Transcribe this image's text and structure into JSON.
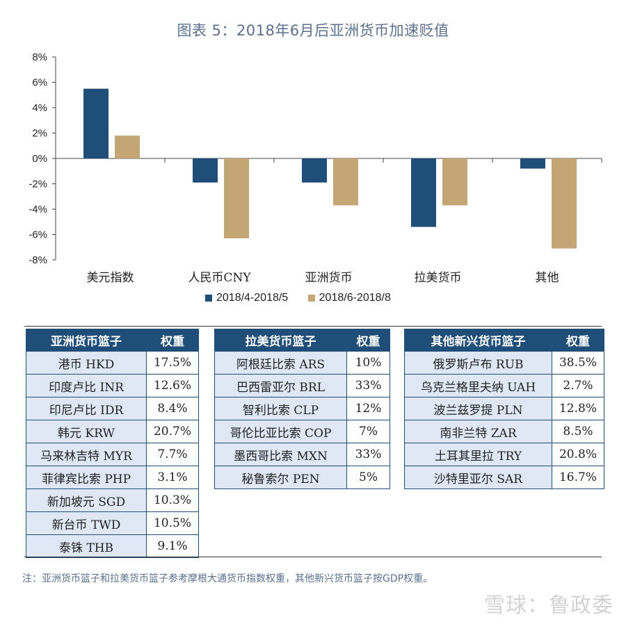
{
  "title": "图表 5：2018年6月后亚洲货币加速贬值",
  "chart_data": {
    "type": "bar",
    "categories": [
      "美元指数",
      "人民币CNY",
      "亚洲货币",
      "拉美货币",
      "其他"
    ],
    "series": [
      {
        "name": "2018/4-2018/5",
        "values": [
          5.5,
          -1.9,
          -1.9,
          -5.4,
          -0.8
        ],
        "color": "#1f4e79"
      },
      {
        "name": "2018/6-2018/8",
        "values": [
          1.8,
          -6.3,
          -3.7,
          -3.7,
          -7.1
        ],
        "color": "#c4a574"
      }
    ],
    "yticks": [
      "8%",
      "6%",
      "4%",
      "2%",
      "0%",
      "-2%",
      "-4%",
      "-6%",
      "-8%"
    ],
    "ylim": [
      -8,
      8
    ],
    "legend_position": "bottom"
  },
  "tables": [
    {
      "headers": [
        "亚洲货币篮子",
        "权重"
      ],
      "rows": [
        [
          "港币 HKD",
          "17.5%"
        ],
        [
          "印度卢比 INR",
          "12.6%"
        ],
        [
          "印尼卢比 IDR",
          "8.4%"
        ],
        [
          "韩元 KRW",
          "20.7%"
        ],
        [
          "马来林吉特 MYR",
          "7.7%"
        ],
        [
          "菲律宾比索 PHP",
          "3.1%"
        ],
        [
          "新加坡元 SGD",
          "10.3%"
        ],
        [
          "新台币 TWD",
          "10.5%"
        ],
        [
          "泰铢 THB",
          "9.1%"
        ]
      ]
    },
    {
      "headers": [
        "拉美货币篮子",
        "权重"
      ],
      "rows": [
        [
          "阿根廷比索 ARS",
          "10%"
        ],
        [
          "巴西雷亚尔 BRL",
          "33%"
        ],
        [
          "智利比索 CLP",
          "12%"
        ],
        [
          "哥伦比亚比索 COP",
          "7%"
        ],
        [
          "墨西哥比索 MXN",
          "33%"
        ],
        [
          "秘鲁索尔 PEN",
          "5%"
        ]
      ]
    },
    {
      "headers": [
        "其他新兴货币篮子",
        "权重"
      ],
      "rows": [
        [
          "俄罗斯卢布 RUB",
          "38.5%"
        ],
        [
          "乌克兰格里夫纳 UAH",
          "2.7%"
        ],
        [
          "波兰兹罗提 PLN",
          "12.8%"
        ],
        [
          "南非兰特 ZAR",
          "8.5%"
        ],
        [
          "土耳其里拉 TRY",
          "20.8%"
        ],
        [
          "沙特里亚尔 SAR",
          "16.7%"
        ]
      ]
    }
  ],
  "note": "注：亚洲货币篮子和拉美货币篮子参考摩根大通货币指数权重，其他新兴货币篮子按GDP权重。",
  "watermark": "雪球：鲁政委"
}
